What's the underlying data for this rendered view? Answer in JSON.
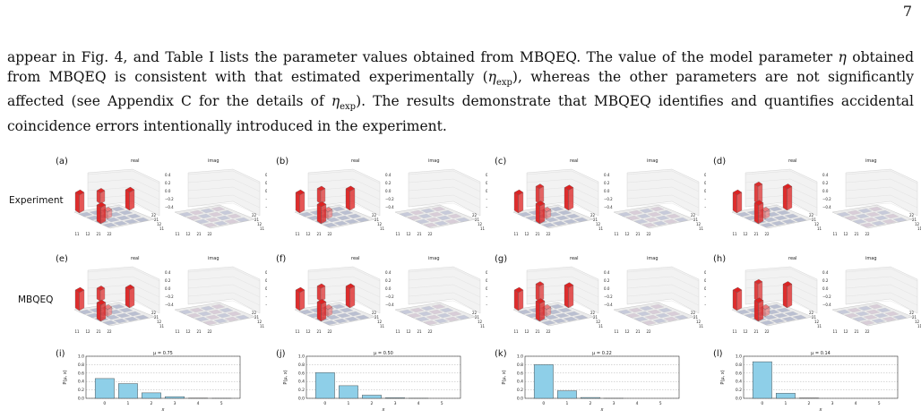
{
  "page_number": "7",
  "paragraph": {
    "s1": "appear in Fig. 4, and Table I lists the parameter values obtained from MBQEQ. The value of the model parameter ",
    "eta": "η",
    "s2": " obtained from MBQEQ is consistent with that estimated experimentally (",
    "eta_exp1": "η",
    "exp_sub": "exp",
    "s3": "), whereas the other parameters are not significantly affected (see Appendix C for the details of ",
    "eta_exp2": "η",
    "exp_sub2": "exp",
    "s4": "). The results demonstrate that MBQEQ identifies and quantifies accidental coincidence errors intentionally introduced in the experiment."
  },
  "figure": {
    "row_labels": {
      "experiment": "Experiment",
      "mbqeq": "MBQEQ"
    },
    "sub_titles": {
      "real": "real",
      "imag": "imag"
    },
    "matrix_ticks": [
      "11",
      "12",
      "21",
      "22"
    ],
    "zaxis_ticks": [
      "0.4",
      "0.2",
      "0.0",
      "−0.2",
      "−0.4"
    ],
    "matrix_panels": [
      {
        "letter": "(a)"
      },
      {
        "letter": "(b)"
      },
      {
        "letter": "(c)"
      },
      {
        "letter": "(d)"
      },
      {
        "letter": "(e)"
      },
      {
        "letter": "(f)"
      },
      {
        "letter": "(g)"
      },
      {
        "letter": "(h)"
      }
    ],
    "colors": {
      "bar_fill": "#8ecfe8",
      "bar_stroke": "#333333",
      "positive": "#dd2222",
      "negative": "#8a93b8"
    }
  },
  "chart_data": [
    {
      "type": "bar",
      "panel": "(i)",
      "title": "μ = 0.75",
      "xlabel": "x",
      "ylabel": "P(μ, x)",
      "categories": [
        0,
        1,
        2,
        3,
        4,
        5
      ],
      "values": [
        0.47,
        0.35,
        0.13,
        0.04,
        0.005,
        0.001
      ],
      "ylim": [
        0,
        1.0
      ],
      "yticks": [
        "0.0",
        "0.2",
        "0.4",
        "0.6",
        "0.8",
        "1.0"
      ],
      "grid": "horizontal-dashed"
    },
    {
      "type": "bar",
      "panel": "(j)",
      "title": "μ = 0.50",
      "xlabel": "x",
      "ylabel": "P(μ, x)",
      "categories": [
        0,
        1,
        2,
        3,
        4,
        5
      ],
      "values": [
        0.61,
        0.3,
        0.075,
        0.013,
        0.002,
        0.0
      ],
      "ylim": [
        0,
        1.0
      ],
      "yticks": [
        "0.0",
        "0.2",
        "0.4",
        "0.6",
        "0.8",
        "1.0"
      ],
      "grid": "horizontal-dashed"
    },
    {
      "type": "bar",
      "panel": "(k)",
      "title": "μ = 0.22",
      "xlabel": "x",
      "ylabel": "P(μ, x)",
      "categories": [
        0,
        1,
        2,
        3,
        4,
        5
      ],
      "values": [
        0.8,
        0.18,
        0.02,
        0.001,
        0.0,
        0.0
      ],
      "ylim": [
        0,
        1.0
      ],
      "yticks": [
        "0.0",
        "0.2",
        "0.4",
        "0.6",
        "0.8",
        "1.0"
      ],
      "grid": "horizontal-dashed"
    },
    {
      "type": "bar",
      "panel": "(l)",
      "title": "μ = 0.14",
      "xlabel": "x",
      "ylabel": "P(μ, x)",
      "categories": [
        0,
        1,
        2,
        3,
        4,
        5
      ],
      "values": [
        0.87,
        0.12,
        0.008,
        0.0,
        0.0,
        0.0
      ],
      "ylim": [
        0,
        1.0
      ],
      "yticks": [
        "0.0",
        "0.2",
        "0.4",
        "0.6",
        "0.8",
        "1.0"
      ],
      "grid": "horizontal-dashed"
    }
  ]
}
